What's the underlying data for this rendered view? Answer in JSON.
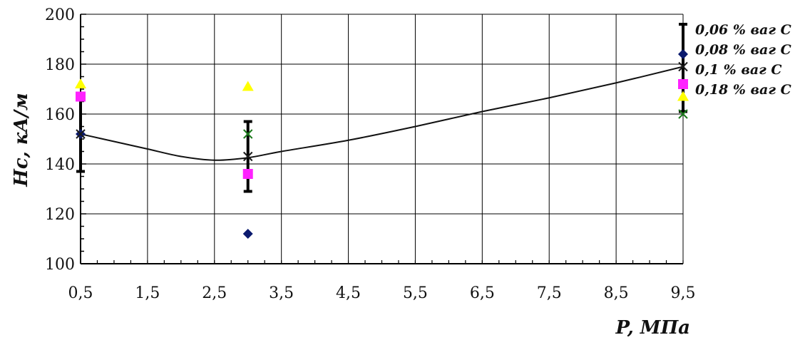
{
  "chart_data": {
    "type": "scatter",
    "title": "",
    "xlabel": "P, МПа",
    "ylabel": "Hc, кА/м",
    "xlim": [
      0.5,
      9.5
    ],
    "ylim": [
      100,
      200
    ],
    "x_ticks": [
      "0,5",
      "1,5",
      "2,5",
      "3,5",
      "4,5",
      "5,5",
      "6,5",
      "7,5",
      "8,5",
      "9,5"
    ],
    "y_ticks": [
      "100",
      "120",
      "140",
      "160",
      "180",
      "200"
    ],
    "grid": true,
    "legend_position": "right",
    "series": [
      {
        "name": "0,06 % ваг С",
        "marker": "diamond",
        "color": "#0b1a6e",
        "points": [
          {
            "x": 0.5,
            "y": 152
          },
          {
            "x": 3.0,
            "y": 112
          },
          {
            "x": 9.5,
            "y": 184
          }
        ]
      },
      {
        "name": "0,08 % ваг С",
        "marker": "x",
        "color": "#1a1a1a",
        "points": [
          {
            "x": 0.5,
            "y": 152
          },
          {
            "x": 3.0,
            "y": 143
          },
          {
            "x": 9.5,
            "y": 179
          }
        ]
      },
      {
        "name": "0,1 % ваг С",
        "marker": "triangle",
        "color": "#ffff00",
        "points": [
          {
            "x": 0.5,
            "y": 172
          },
          {
            "x": 3.0,
            "y": 171
          },
          {
            "x": 9.5,
            "y": 167
          }
        ]
      },
      {
        "name": "0,18 % ваг С",
        "marker": "x",
        "color": "#1c7a1c",
        "points": [
          {
            "x": 0.5,
            "y": 167
          },
          {
            "x": 3.0,
            "y": 152
          },
          {
            "x": 9.5,
            "y": 160
          }
        ]
      },
      {
        "marker": "square",
        "color": "#ff22ff",
        "points": [
          {
            "x": 0.5,
            "y": 167
          },
          {
            "x": 3.0,
            "y": 136
          },
          {
            "x": 9.5,
            "y": 172
          }
        ]
      }
    ],
    "error_bars": [
      {
        "x": 0.5,
        "low": 137,
        "high": 168
      },
      {
        "x": 3.0,
        "low": 129,
        "high": 157
      },
      {
        "x": 9.5,
        "low": 161,
        "high": 196
      }
    ],
    "trend_line": [
      {
        "x": 0.5,
        "y": 152
      },
      {
        "x": 1.0,
        "y": 149
      },
      {
        "x": 1.5,
        "y": 146
      },
      {
        "x": 2.0,
        "y": 143
      },
      {
        "x": 2.5,
        "y": 141.5
      },
      {
        "x": 3.0,
        "y": 142.5
      },
      {
        "x": 3.5,
        "y": 145
      },
      {
        "x": 4.5,
        "y": 149.5
      },
      {
        "x": 5.5,
        "y": 155
      },
      {
        "x": 6.5,
        "y": 161
      },
      {
        "x": 7.5,
        "y": 166.5
      },
      {
        "x": 8.5,
        "y": 172.5
      },
      {
        "x": 9.5,
        "y": 179
      }
    ]
  }
}
